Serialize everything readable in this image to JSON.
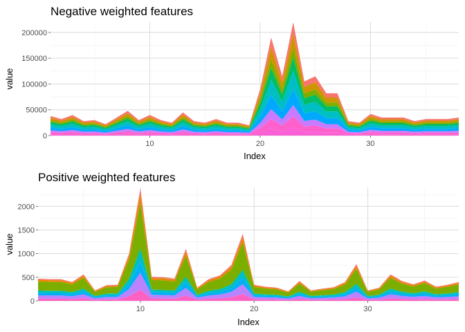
{
  "chart_data": [
    {
      "type": "area",
      "stacked": true,
      "title": "Negative weighted features",
      "xlabel": "Index",
      "ylabel": "value",
      "xlim": [
        1,
        38
      ],
      "ylim": [
        0,
        220000
      ],
      "x_ticks": [
        10,
        20,
        30
      ],
      "y_ticks": [
        0,
        50000,
        100000,
        150000,
        200000
      ],
      "y_tick_labels": [
        "0",
        "50000",
        "100000",
        "150000",
        "200000"
      ],
      "grid": true,
      "legend": "none",
      "total": [
        38000,
        32000,
        40000,
        28000,
        30000,
        22000,
        35000,
        48000,
        30000,
        40000,
        30000,
        25000,
        45000,
        28000,
        25000,
        32000,
        25000,
        25000,
        20000,
        90000,
        190000,
        115000,
        220000,
        105000,
        115000,
        82000,
        82000,
        28000,
        25000,
        42000,
        35000,
        35000,
        35000,
        28000,
        32000,
        32000,
        32000,
        35000
      ],
      "layer_shares": [
        0.1,
        0.12,
        0.09,
        0.12,
        0.16,
        0.14,
        0.1,
        0.1,
        0.07
      ],
      "series_colors": [
        "#f8766d",
        "#cd9600",
        "#7cae00",
        "#00be67",
        "#00bfc4",
        "#00a9ff",
        "#c77cff",
        "#ff61cc",
        "#fb61d7"
      ]
    },
    {
      "type": "area",
      "stacked": true,
      "title": "Positive weighted features",
      "xlabel": "Index",
      "ylabel": "value",
      "xlim": [
        1,
        38
      ],
      "ylim": [
        0,
        2400
      ],
      "x_ticks": [
        10,
        20,
        30
      ],
      "y_ticks": [
        0,
        500,
        1000,
        1500,
        2000
      ],
      "y_tick_labels": [
        "0",
        "500",
        "1000",
        "1500",
        "2000"
      ],
      "grid": true,
      "legend": "none",
      "total": [
        470,
        460,
        460,
        400,
        560,
        220,
        330,
        340,
        1000,
        2380,
        510,
        500,
        470,
        1100,
        280,
        460,
        540,
        760,
        1420,
        340,
        300,
        280,
        200,
        420,
        220,
        260,
        290,
        400,
        780,
        220,
        280,
        560,
        420,
        350,
        430,
        300,
        340,
        400
      ],
      "layer_shares": [
        0.05,
        0.08,
        0.4,
        0.02,
        0.1,
        0.1,
        0.15,
        0.1
      ],
      "series_colors": [
        "#f8766d",
        "#e38900",
        "#7cae00",
        "#00bc59",
        "#00bfc4",
        "#00b0f6",
        "#b983ff",
        "#ff61c3"
      ]
    }
  ]
}
